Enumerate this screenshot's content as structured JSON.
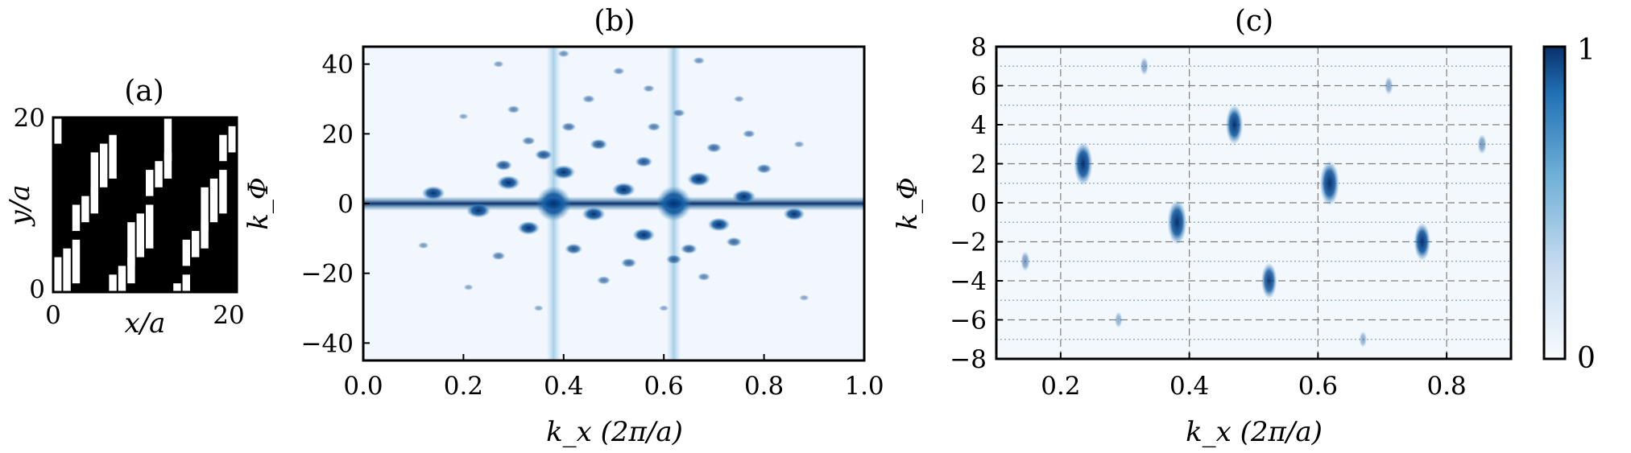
{
  "panels": {
    "a": {
      "label": "(a)",
      "xlabel": "x/a",
      "ylabel": "y/a",
      "xticks": [
        "0",
        "20"
      ],
      "yticks": [
        "0",
        "20"
      ]
    },
    "b": {
      "label": "(b)",
      "xlabel": "k_x (2π/a)",
      "ylabel": "k_Φ"
    },
    "c": {
      "label": "(c)",
      "xlabel": "k_x (2π/a)",
      "ylabel": "k_Φ"
    }
  },
  "colorbar": {
    "min_label": "0",
    "max_label": "1"
  },
  "colors": {
    "dark": "#08306b",
    "mid": "#2b6dae",
    "light": "#f3f8fd",
    "grid": "#808080",
    "dotted": "#9bb3cc"
  },
  "chart_data": [
    {
      "type": "heatmap",
      "title": "(a)",
      "description_values": "binary stripe pattern, 20 columns × 20 rows",
      "xlim": [
        0,
        20
      ],
      "ylim": [
        0,
        20
      ],
      "xlabel": "x/a",
      "ylabel": "y/a"
    },
    {
      "type": "heatmap",
      "title": "(b)",
      "xlim": [
        0.0,
        1.0
      ],
      "ylim": [
        -45,
        45
      ],
      "xticks": [
        0.0,
        0.2,
        0.4,
        0.6,
        0.8,
        1.0
      ],
      "yticks": [
        -40,
        -20,
        0,
        20,
        40
      ],
      "xlabel": "k_x (2π/a)",
      "ylabel": "k_Φ",
      "peaks": [
        {
          "x": 0.14,
          "y": 3,
          "v": 0.9
        },
        {
          "x": 0.23,
          "y": -2,
          "v": 0.95
        },
        {
          "x": 0.29,
          "y": 6,
          "v": 0.9
        },
        {
          "x": 0.33,
          "y": -7,
          "v": 0.85
        },
        {
          "x": 0.38,
          "y": 0,
          "v": 1.0
        },
        {
          "x": 0.4,
          "y": 9,
          "v": 0.9
        },
        {
          "x": 0.46,
          "y": -3,
          "v": 0.9
        },
        {
          "x": 0.52,
          "y": 4,
          "v": 0.9
        },
        {
          "x": 0.56,
          "y": -9,
          "v": 0.85
        },
        {
          "x": 0.62,
          "y": 0,
          "v": 1.0
        },
        {
          "x": 0.67,
          "y": 7,
          "v": 0.9
        },
        {
          "x": 0.71,
          "y": -6,
          "v": 0.85
        },
        {
          "x": 0.76,
          "y": 2,
          "v": 0.9
        },
        {
          "x": 0.86,
          "y": -3,
          "v": 0.8
        },
        {
          "x": 0.28,
          "y": 11,
          "v": 0.6
        },
        {
          "x": 0.36,
          "y": 14,
          "v": 0.6
        },
        {
          "x": 0.42,
          "y": -13,
          "v": 0.6
        },
        {
          "x": 0.47,
          "y": 17,
          "v": 0.6
        },
        {
          "x": 0.53,
          "y": -17,
          "v": 0.5
        },
        {
          "x": 0.56,
          "y": 12,
          "v": 0.6
        },
        {
          "x": 0.62,
          "y": -16,
          "v": 0.5
        },
        {
          "x": 0.65,
          "y": -13,
          "v": 0.55
        },
        {
          "x": 0.7,
          "y": 16,
          "v": 0.5
        },
        {
          "x": 0.74,
          "y": -11,
          "v": 0.5
        },
        {
          "x": 0.8,
          "y": 10,
          "v": 0.5
        },
        {
          "x": 0.27,
          "y": -15,
          "v": 0.4
        },
        {
          "x": 0.33,
          "y": 18,
          "v": 0.4
        },
        {
          "x": 0.41,
          "y": 22,
          "v": 0.45
        },
        {
          "x": 0.48,
          "y": -22,
          "v": 0.4
        },
        {
          "x": 0.58,
          "y": 22,
          "v": 0.4
        },
        {
          "x": 0.68,
          "y": -21,
          "v": 0.35
        },
        {
          "x": 0.77,
          "y": 20,
          "v": 0.35
        },
        {
          "x": 0.3,
          "y": 27,
          "v": 0.35
        },
        {
          "x": 0.45,
          "y": 30,
          "v": 0.35
        },
        {
          "x": 0.63,
          "y": 26,
          "v": 0.35
        },
        {
          "x": 0.51,
          "y": 38,
          "v": 0.3
        },
        {
          "x": 0.67,
          "y": 41,
          "v": 0.3
        },
        {
          "x": 0.4,
          "y": 43,
          "v": 0.3
        },
        {
          "x": 0.27,
          "y": 40,
          "v": 0.25
        },
        {
          "x": 0.57,
          "y": 33,
          "v": 0.3
        },
        {
          "x": 0.75,
          "y": 30,
          "v": 0.25
        },
        {
          "x": 0.2,
          "y": 25,
          "v": 0.2
        },
        {
          "x": 0.87,
          "y": 17,
          "v": 0.25
        },
        {
          "x": 0.12,
          "y": -12,
          "v": 0.25
        },
        {
          "x": 0.21,
          "y": -24,
          "v": 0.2
        },
        {
          "x": 0.88,
          "y": -27,
          "v": 0.2
        },
        {
          "x": 0.35,
          "y": -30,
          "v": 0.2
        },
        {
          "x": 0.6,
          "y": -30,
          "v": 0.2
        }
      ],
      "ridges": [
        {
          "kind": "horizontal",
          "y": 0
        },
        {
          "kind": "vertical",
          "x": 0.38
        },
        {
          "kind": "vertical",
          "x": 0.62
        }
      ]
    },
    {
      "type": "heatmap",
      "title": "(c)",
      "xlim": [
        0.1,
        0.9
      ],
      "ylim": [
        -8,
        8
      ],
      "xticks": [
        0.2,
        0.4,
        0.6,
        0.8
      ],
      "yticks": [
        -8,
        -6,
        -4,
        -2,
        0,
        2,
        4,
        6,
        8
      ],
      "xlabel": "k_x (2π/a)",
      "ylabel": "k_Φ",
      "grid_dashed_x": [
        0.2,
        0.4,
        0.6,
        0.8
      ],
      "grid_dashed_y": [
        -6,
        -4,
        -2,
        0,
        2,
        4,
        6
      ],
      "grid_dotted_y": [
        -7,
        -5,
        -3,
        -1,
        1,
        3,
        5,
        7
      ],
      "peaks": [
        {
          "x": 0.235,
          "y": 2,
          "v": 0.95
        },
        {
          "x": 0.381,
          "y": -1,
          "v": 1.0
        },
        {
          "x": 0.47,
          "y": 4,
          "v": 0.85
        },
        {
          "x": 0.524,
          "y": -4,
          "v": 0.75
        },
        {
          "x": 0.618,
          "y": 1,
          "v": 1.0
        },
        {
          "x": 0.762,
          "y": -2,
          "v": 0.8
        },
        {
          "x": 0.145,
          "y": -3,
          "v": 0.3
        },
        {
          "x": 0.29,
          "y": -6,
          "v": 0.2
        },
        {
          "x": 0.33,
          "y": 7,
          "v": 0.25
        },
        {
          "x": 0.67,
          "y": -7,
          "v": 0.2
        },
        {
          "x": 0.71,
          "y": 6,
          "v": 0.25
        },
        {
          "x": 0.855,
          "y": 3,
          "v": 0.3
        }
      ]
    }
  ]
}
